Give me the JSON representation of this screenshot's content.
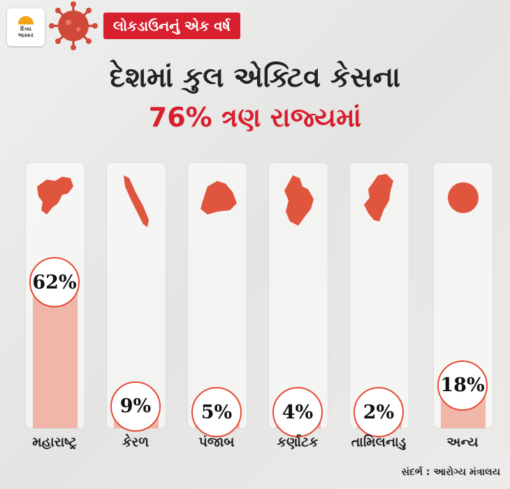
{
  "header": {
    "logo_line1": "દિવ્ય",
    "logo_line2": "ભાસ્કર",
    "banner": "લોકડાઉનનું એક વર્ષ"
  },
  "title": {
    "line1": "દેશમાં કુલ એક્ટિવ કેસના",
    "line2": "76% ત્રણ રાજ્યમાં"
  },
  "colors": {
    "accent": "#d71f2e",
    "map": "#e0553d",
    "bar": "#f0b7a8"
  },
  "chart_data": {
    "type": "bar",
    "categories": [
      "મહારાષ્ટ્ર",
      "કેરળ",
      "પંજાબ",
      "કર્ણાટક",
      "તામિલનાડુ",
      "અન્ય"
    ],
    "values": [
      62,
      9,
      5,
      4,
      2,
      18
    ],
    "value_labels": [
      "62%",
      "9%",
      "5%",
      "4%",
      "2%",
      "18%"
    ],
    "ylim": [
      0,
      100
    ]
  },
  "source": "સંદર્ભ : આરોગ્ય મંત્રાલય"
}
